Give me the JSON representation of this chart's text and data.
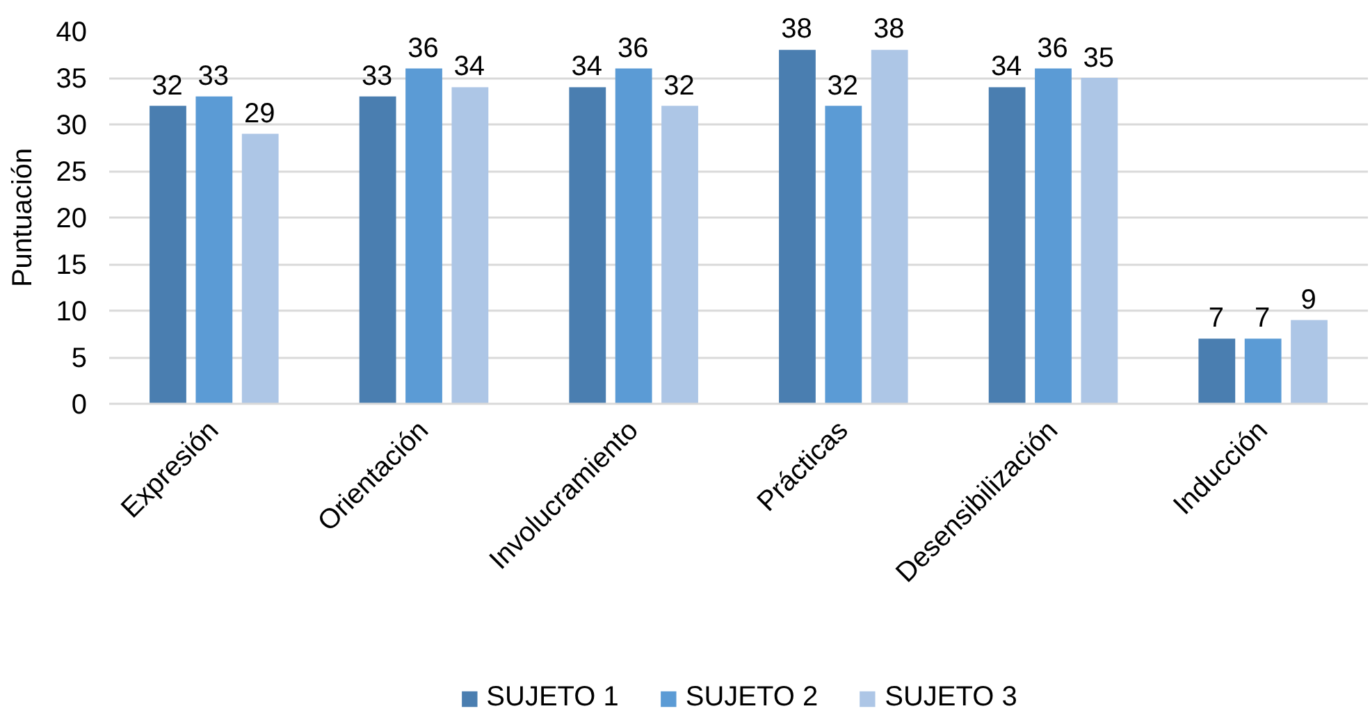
{
  "chart_data": {
    "type": "bar",
    "ylabel": "Puntuación",
    "categories": [
      "Expresión",
      "Orientación",
      "Involucramiento",
      "Prácticas",
      "Desensibilización",
      "Inducción"
    ],
    "series": [
      {
        "name": "SUJETO 1",
        "color": "#4a7eb0",
        "values": [
          32,
          33,
          34,
          38,
          34,
          7
        ]
      },
      {
        "name": "SUJETO 2",
        "color": "#5b9bd5",
        "values": [
          33,
          36,
          36,
          32,
          36,
          7
        ]
      },
      {
        "name": "SUJETO 3",
        "color": "#adc6e6",
        "values": [
          29,
          34,
          32,
          38,
          35,
          9
        ]
      }
    ],
    "ylim": [
      0,
      40
    ],
    "yticks": [
      0,
      5,
      10,
      15,
      20,
      25,
      30,
      35,
      40
    ],
    "grid": "y",
    "legend": "bottom",
    "data_labels": true
  }
}
